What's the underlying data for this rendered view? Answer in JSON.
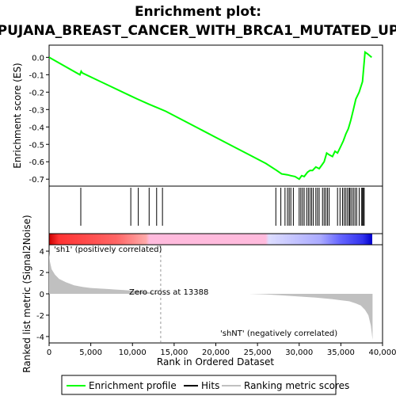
{
  "chart_data": {
    "type": "line",
    "title": "Enrichment plot:",
    "subtitle": "PUJANA_BREAST_CANCER_WITH_BRCA1_MUTATED_UP",
    "es_panel": {
      "ylabel": "Enrichment score (ES)",
      "ylim": [
        -0.74,
        0.07
      ],
      "yticks": [
        "0.0",
        "-0.1",
        "-0.2",
        "-0.3",
        "-0.4",
        "-0.5",
        "-0.6",
        "-0.7"
      ],
      "ytick_values": [
        0.0,
        -0.1,
        -0.2,
        -0.3,
        -0.4,
        -0.5,
        -0.6,
        -0.7
      ],
      "line_color": "#00ff00",
      "x": [
        0,
        3700,
        3850,
        4000,
        9700,
        10600,
        12000,
        13000,
        14000,
        16000,
        18000,
        20000,
        22000,
        24000,
        26000,
        27300,
        27900,
        28600,
        29000,
        29500,
        30000,
        30300,
        30600,
        31000,
        31300,
        31600,
        32000,
        32400,
        32700,
        33000,
        33300,
        33600,
        34000,
        34300,
        34600,
        35000,
        35300,
        35600,
        35900,
        36200,
        36500,
        36800,
        37200,
        37600,
        37900,
        38200,
        38700
      ],
      "y": [
        0.0,
        -0.1,
        -0.08,
        -0.09,
        -0.22,
        -0.24,
        -0.27,
        -0.29,
        -0.31,
        -0.36,
        -0.41,
        -0.46,
        -0.51,
        -0.56,
        -0.61,
        -0.65,
        -0.67,
        -0.675,
        -0.68,
        -0.685,
        -0.7,
        -0.68,
        -0.685,
        -0.66,
        -0.65,
        -0.65,
        -0.63,
        -0.64,
        -0.62,
        -0.6,
        -0.55,
        -0.56,
        -0.57,
        -0.54,
        -0.55,
        -0.51,
        -0.48,
        -0.44,
        -0.41,
        -0.36,
        -0.3,
        -0.24,
        -0.2,
        -0.14,
        0.03,
        0.02,
        0.0
      ]
    },
    "hits": {
      "positions": [
        3800,
        9800,
        10700,
        12000,
        12900,
        13600,
        27200,
        27800,
        28300,
        28600,
        28800,
        29000,
        29300,
        30000,
        30200,
        30400,
        30600,
        30900,
        31100,
        31300,
        31500,
        31700,
        32000,
        32200,
        32400,
        32800,
        33000,
        33200,
        33400,
        33600,
        34600,
        34900,
        35200,
        35400,
        35600,
        35800,
        36000,
        36100,
        36300,
        36500,
        36700,
        36900,
        37200,
        37500,
        37600,
        37700,
        37800
      ]
    },
    "heat_bar": {
      "gradient_stops": [
        {
          "at": 0.0,
          "color": "#cc0000"
        },
        {
          "at": 0.03,
          "color": "#ff3333"
        },
        {
          "at": 0.21,
          "color": "#ff6666"
        },
        {
          "at": 0.3,
          "color": "#ffaaaa"
        },
        {
          "at": 0.31,
          "color": "#ffbbdd"
        },
        {
          "at": 0.67,
          "color": "#ffbbdd"
        },
        {
          "at": 0.68,
          "color": "#ddddff"
        },
        {
          "at": 0.84,
          "color": "#aaaaff"
        },
        {
          "at": 0.9,
          "color": "#6666ff"
        },
        {
          "at": 0.97,
          "color": "#3333ee"
        },
        {
          "at": 1.0,
          "color": "#0000cc"
        }
      ],
      "pos_label": "'sh1' (positively correlated)",
      "neg_label": "'shNT' (negatively correlated)",
      "pos_color": "#ff0000",
      "neg_color": "#0000ff"
    },
    "metric_panel": {
      "ylabel": "Ranked list metric (Signal2Noise)",
      "ylim": [
        -4.6,
        4.6
      ],
      "yticks": [
        "4",
        "2",
        "0",
        "-2",
        "-4"
      ],
      "ytick_values": [
        4,
        2,
        0,
        -2,
        -4
      ],
      "fill_color": "#c0c0c0",
      "x": [
        0,
        100,
        300,
        700,
        1200,
        2000,
        3000,
        4000,
        5000,
        6000,
        7000,
        8000,
        9000,
        10000,
        11000,
        12000,
        13000,
        13388,
        14000,
        16000,
        18000,
        20000,
        22000,
        24000,
        26000,
        28000,
        30000,
        32000,
        34000,
        35000,
        36000,
        36800,
        37400,
        37900,
        38300,
        38600,
        38800
      ],
      "y": [
        3.8,
        3.0,
        2.3,
        1.8,
        1.4,
        1.1,
        0.8,
        0.65,
        0.55,
        0.5,
        0.45,
        0.4,
        0.35,
        0.3,
        0.25,
        0.15,
        0.05,
        0.0,
        0.0,
        0.0,
        0.0,
        0.0,
        0.0,
        0.0,
        -0.05,
        -0.15,
        -0.25,
        -0.35,
        -0.5,
        -0.6,
        -0.7,
        -0.9,
        -1.1,
        -1.5,
        -2.0,
        -3.0,
        -4.3
      ],
      "zero_cross_label": "Zero cross at 13388",
      "zero_cross_x": 13388
    },
    "x_axis": {
      "label": "Rank in Ordered Dataset",
      "xlim": [
        0,
        40000
      ],
      "ticks": [
        "0",
        "5,000",
        "10,000",
        "15,000",
        "20,000",
        "25,000",
        "30,000",
        "35,000",
        "40,000"
      ],
      "tick_values": [
        0,
        5000,
        10000,
        15000,
        20000,
        25000,
        30000,
        35000,
        40000
      ]
    },
    "legend": {
      "placement": "bottom",
      "items": [
        {
          "label": "Enrichment profile",
          "color": "#00ff00"
        },
        {
          "label": "Hits",
          "color": "#000000"
        },
        {
          "label": "Ranking metric scores",
          "color": "#c0c0c0"
        }
      ]
    }
  }
}
